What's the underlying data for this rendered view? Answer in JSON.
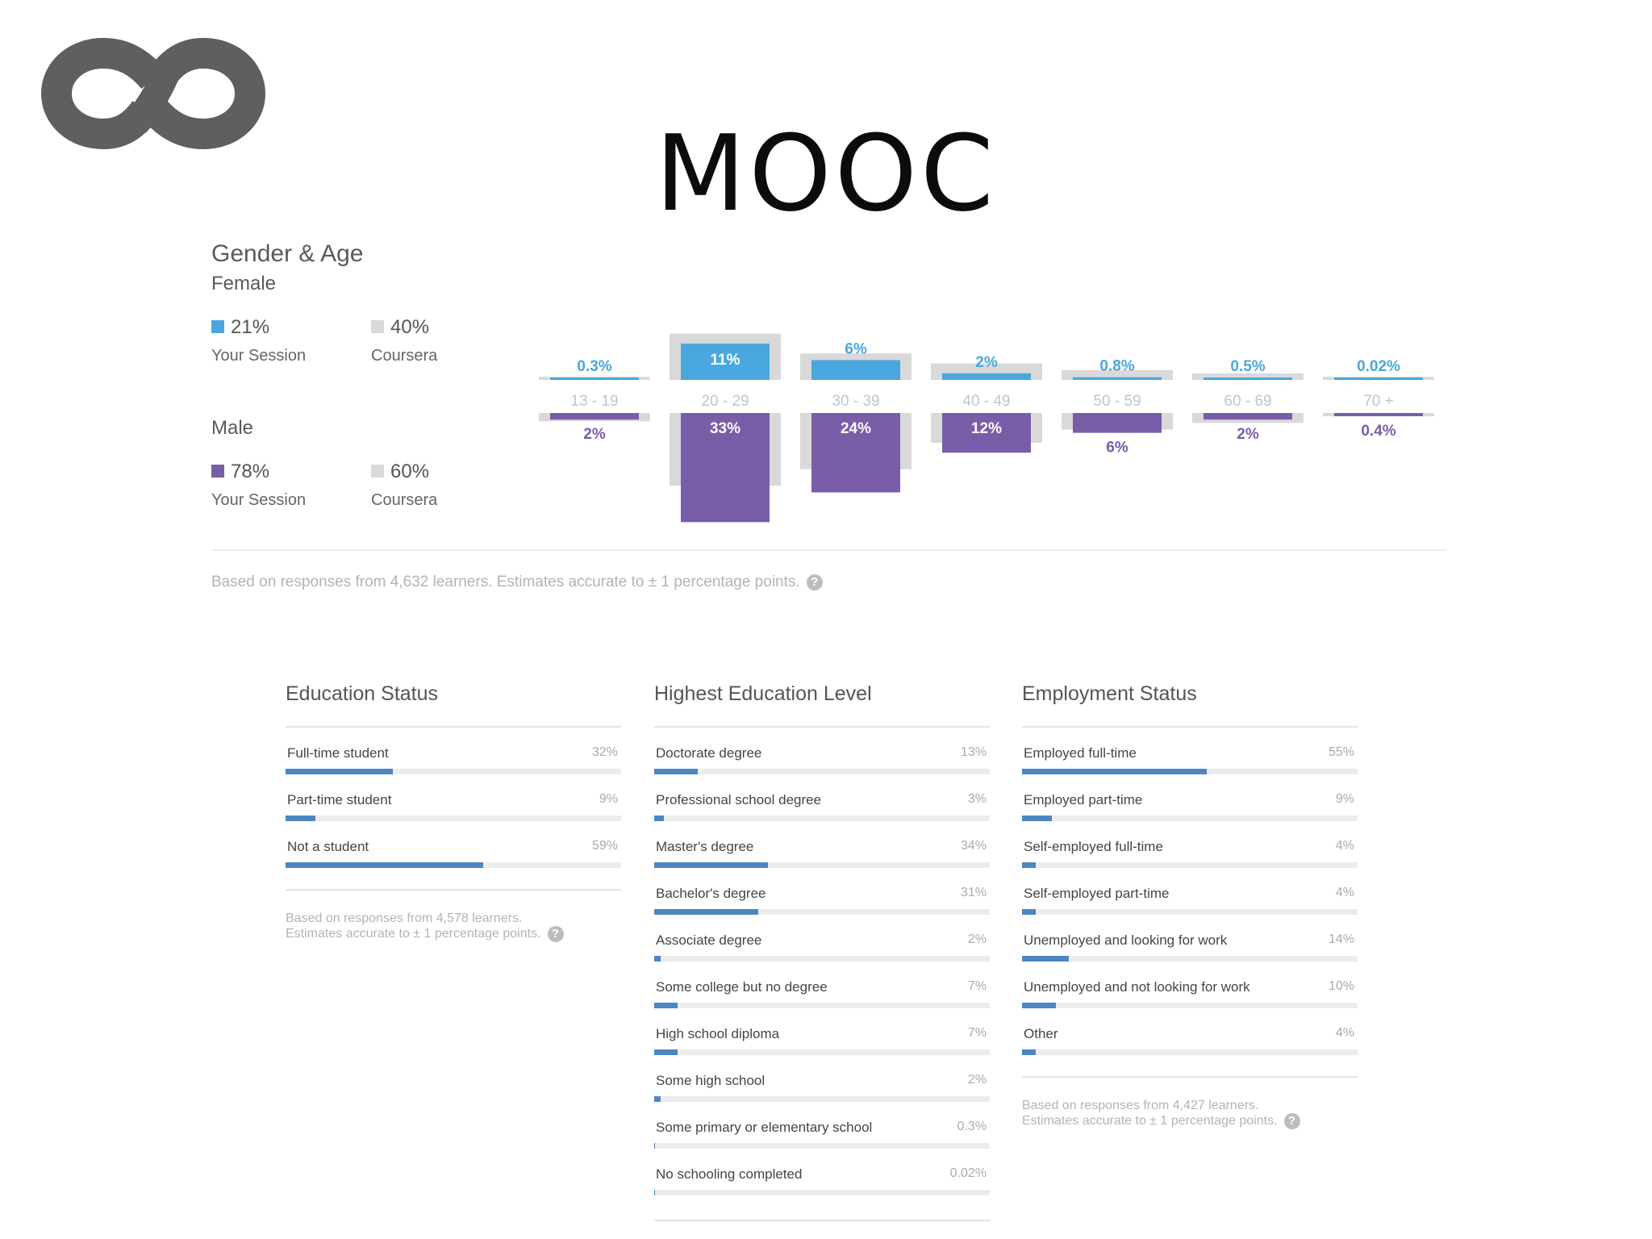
{
  "slide": {
    "title": "MOOC",
    "logo_icon": "coursera-infinity-logo"
  },
  "colors": {
    "session_female": "#4aa7dd",
    "session_male": "#7a5da9",
    "coursera": "#d9d9d9",
    "bar_fill": "#4d86c1"
  },
  "gender_age": {
    "title": "Gender & Age",
    "female": {
      "label": "Female",
      "session_pct": "21%",
      "session_label": "Your Session",
      "coursera_pct": "40%",
      "coursera_label": "Coursera"
    },
    "male": {
      "label": "Male",
      "session_pct": "78%",
      "session_label": "Your Session",
      "coursera_pct": "60%",
      "coursera_label": "Coursera"
    },
    "footnote": "Based on responses from 4,632 learners. Estimates accurate to ± 1 percentage points."
  },
  "chart_data": [
    {
      "type": "bar",
      "title": "Gender & Age",
      "categories": [
        "13 - 19",
        "20 - 29",
        "30 - 39",
        "40 - 49",
        "50 - 59",
        "60 - 69",
        "70 +"
      ],
      "series": [
        {
          "name": "Female Your Session",
          "values": [
            0.3,
            11,
            6,
            2,
            0.8,
            0.5,
            0.02
          ],
          "labels": [
            "0.3%",
            "11%",
            "6%",
            "2%",
            "0.8%",
            "0.5%",
            "0.02%"
          ]
        },
        {
          "name": "Female Coursera",
          "values": [
            0.5,
            14,
            8,
            5,
            3,
            2,
            0.5
          ]
        },
        {
          "name": "Male Your Session",
          "values": [
            2,
            33,
            24,
            12,
            6,
            2,
            0.4
          ],
          "labels": [
            "2%",
            "33%",
            "24%",
            "12%",
            "6%",
            "2%",
            "0.4%"
          ]
        },
        {
          "name": "Male Coursera",
          "values": [
            2.5,
            22,
            17,
            9,
            5,
            3,
            1
          ]
        }
      ]
    },
    {
      "type": "bar",
      "title": "Education Status",
      "categories": [
        "Full-time student",
        "Part-time student",
        "Not a student"
      ],
      "values": [
        32,
        9,
        59
      ],
      "labels": [
        "32%",
        "9%",
        "59%"
      ]
    },
    {
      "type": "bar",
      "title": "Highest Education Level",
      "categories": [
        "Doctorate degree",
        "Professional school degree",
        "Master's degree",
        "Bachelor's degree",
        "Associate degree",
        "Some college but no degree",
        "High school diploma",
        "Some high school",
        "Some primary or elementary school",
        "No schooling completed"
      ],
      "values": [
        13,
        3,
        34,
        31,
        2,
        7,
        7,
        2,
        0.3,
        0.02
      ],
      "labels": [
        "13%",
        "3%",
        "34%",
        "31%",
        "2%",
        "7%",
        "7%",
        "2%",
        "0.3%",
        "0.02%"
      ]
    },
    {
      "type": "bar",
      "title": "Employment Status",
      "categories": [
        "Employed full-time",
        "Employed part-time",
        "Self-employed full-time",
        "Self-employed part-time",
        "Unemployed and looking for work",
        "Unemployed and not looking for work",
        "Other"
      ],
      "values": [
        55,
        9,
        4,
        4,
        14,
        10,
        4
      ],
      "labels": [
        "55%",
        "9%",
        "4%",
        "4%",
        "14%",
        "10%",
        "4%"
      ]
    }
  ],
  "panels": {
    "education": {
      "title": "Education Status",
      "footnote_line1": "Based on responses from 4,578 learners.",
      "footnote_line2": "Estimates accurate to ± 1 percentage points."
    },
    "level": {
      "title": "Highest Education Level"
    },
    "employment": {
      "title": "Employment Status",
      "footnote_line1": "Based on responses from 4,427 learners.",
      "footnote_line2": "Estimates accurate to ± 1 percentage points."
    }
  },
  "help_icon": "?"
}
